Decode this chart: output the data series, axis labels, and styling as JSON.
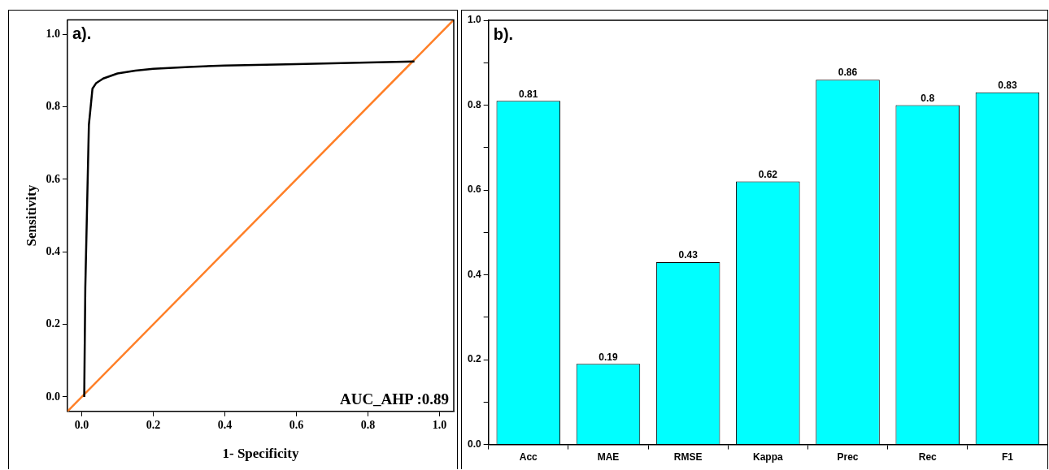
{
  "chart_data": [
    {
      "type": "line",
      "xlabel": "1- Specificity",
      "ylabel": "Sensitivity",
      "xlim": [
        -0.04,
        1.04
      ],
      "ylim": [
        -0.04,
        1.04
      ],
      "xticks": [
        {
          "value": 0,
          "label": "0.0"
        },
        0.2,
        0.4,
        0.6,
        0.8,
        {
          "value": 1,
          "label": "1.0"
        }
      ],
      "yticks": [
        {
          "value": 0,
          "label": "0.0"
        },
        0.2,
        0.4,
        0.6,
        0.8,
        {
          "value": 1,
          "label": "1.0"
        }
      ],
      "grid": false,
      "legend": false,
      "marker": "none",
      "line_style": "solid",
      "series": [
        {
          "color": "#000000",
          "x": [
            0.007,
            0.01,
            0.02,
            0.03,
            0.04,
            0.06,
            0.1,
            0.15,
            0.2,
            0.3,
            0.4,
            0.6,
            0.8,
            0.93
          ],
          "values": [
            0.0,
            0.3,
            0.75,
            0.85,
            0.865,
            0.878,
            0.892,
            0.9,
            0.905,
            0.91,
            0.914,
            0.918,
            0.922,
            0.925
          ]
        },
        {
          "color": "#ff7f27",
          "x": [
            -0.04,
            1.04
          ],
          "values": [
            -0.04,
            1.04
          ]
        }
      ],
      "annotations": [
        "a).",
        "AUC_AHP :0.89"
      ]
    },
    {
      "type": "bar",
      "categories": [
        "Acc",
        "MAE",
        "RMSE",
        "Kappa",
        "Prec",
        "Rec",
        "F1"
      ],
      "values": [
        0.81,
        0.19,
        0.43,
        0.62,
        0.86,
        0.8,
        0.83
      ],
      "color": "#00ffff",
      "ylim": [
        0,
        1
      ],
      "yticks": [
        {
          "value": 0,
          "label": "0.0"
        },
        {
          "value": 0.1,
          "label": null
        },
        0.2,
        {
          "value": 0.3,
          "label": null
        },
        0.4,
        {
          "value": 0.5,
          "label": null
        },
        0.6,
        {
          "value": 0.7,
          "label": null
        },
        0.8,
        {
          "value": 0.9,
          "label": null
        },
        {
          "value": 1,
          "label": "1.0"
        }
      ],
      "grid": false,
      "legend": false,
      "data_labels": true,
      "annotations": [
        "b)."
      ]
    }
  ]
}
